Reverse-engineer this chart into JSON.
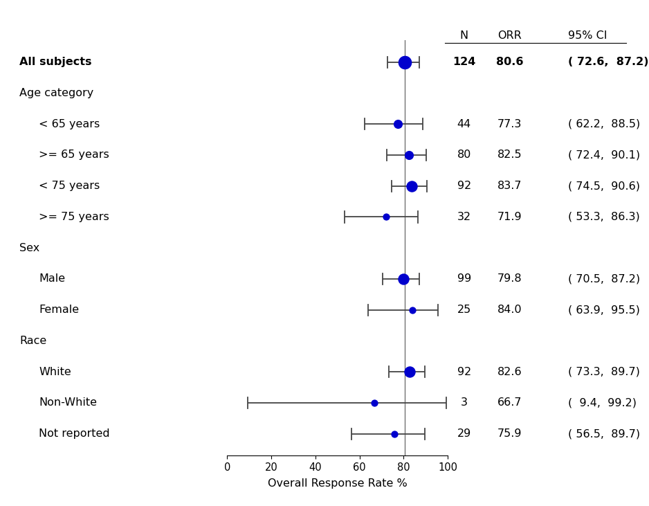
{
  "subgroups": [
    {
      "label": "All subjects",
      "orr": 80.6,
      "ci_lo": 72.6,
      "ci_hi": 87.2,
      "n": "124",
      "n_bold": true,
      "orr_str": "80.6",
      "ci_str": "( 72.6,  87.2)",
      "bold": true,
      "indent": 0,
      "is_header": false
    },
    {
      "label": "Age category",
      "orr": null,
      "ci_lo": null,
      "ci_hi": null,
      "n": null,
      "n_bold": false,
      "orr_str": null,
      "ci_str": null,
      "bold": false,
      "indent": 0,
      "is_header": true
    },
    {
      "label": "< 65 years",
      "orr": 77.3,
      "ci_lo": 62.2,
      "ci_hi": 88.5,
      "n": "44",
      "n_bold": false,
      "orr_str": "77.3",
      "ci_str": "( 62.2,  88.5)",
      "bold": false,
      "indent": 1,
      "is_header": false
    },
    {
      ">= 65 years": null,
      "label": ">= 65 years",
      "orr": 82.5,
      "ci_lo": 72.4,
      "ci_hi": 90.1,
      "n": "80",
      "n_bold": false,
      "orr_str": "82.5",
      "ci_str": "( 72.4,  90.1)",
      "bold": false,
      "indent": 1,
      "is_header": false
    },
    {
      "label": "< 75 years",
      "orr": 83.7,
      "ci_lo": 74.5,
      "ci_hi": 90.6,
      "n": "92",
      "n_bold": false,
      "orr_str": "83.7",
      "ci_str": "( 74.5,  90.6)",
      "bold": false,
      "indent": 1,
      "is_header": false
    },
    {
      "label": ">= 75 years",
      "orr": 71.9,
      "ci_lo": 53.3,
      "ci_hi": 86.3,
      "n": "32",
      "n_bold": false,
      "orr_str": "71.9",
      "ci_str": "( 53.3,  86.3)",
      "bold": false,
      "indent": 1,
      "is_header": false
    },
    {
      "label": "Sex",
      "orr": null,
      "ci_lo": null,
      "ci_hi": null,
      "n": null,
      "n_bold": false,
      "orr_str": null,
      "ci_str": null,
      "bold": false,
      "indent": 0,
      "is_header": true
    },
    {
      "label": "Male",
      "orr": 79.8,
      "ci_lo": 70.5,
      "ci_hi": 87.2,
      "n": "99",
      "n_bold": false,
      "orr_str": "79.8",
      "ci_str": "( 70.5,  87.2)",
      "bold": false,
      "indent": 1,
      "is_header": false
    },
    {
      "label": "Female",
      "orr": 84.0,
      "ci_lo": 63.9,
      "ci_hi": 95.5,
      "n": "25",
      "n_bold": false,
      "orr_str": "84.0",
      "ci_str": "( 63.9,  95.5)",
      "bold": false,
      "indent": 1,
      "is_header": false
    },
    {
      "label": "Race",
      "orr": null,
      "ci_lo": null,
      "ci_hi": null,
      "n": null,
      "n_bold": false,
      "orr_str": null,
      "ci_str": null,
      "bold": false,
      "indent": 0,
      "is_header": true
    },
    {
      "label": "White",
      "orr": 82.6,
      "ci_lo": 73.3,
      "ci_hi": 89.7,
      "n": "92",
      "n_bold": false,
      "orr_str": "82.6",
      "ci_str": "( 73.3,  89.7)",
      "bold": false,
      "indent": 1,
      "is_header": false
    },
    {
      "label": "Non-White",
      "orr": 66.7,
      "ci_lo": 9.4,
      "ci_hi": 99.2,
      "n": "3",
      "n_bold": false,
      "orr_str": "66.7",
      "ci_str": "(  9.4,  99.2)",
      "bold": false,
      "indent": 1,
      "is_header": false
    },
    {
      "label": "Not reported",
      "orr": 75.9,
      "ci_lo": 56.5,
      "ci_hi": 89.7,
      "n": "29",
      "n_bold": false,
      "orr_str": "75.9",
      "ci_str": "( 56.5,  89.7)",
      "bold": false,
      "indent": 1,
      "is_header": false
    }
  ],
  "xlim": [
    0,
    100
  ],
  "xticks": [
    0,
    20,
    40,
    60,
    80,
    100
  ],
  "xlabel": "Overall Response Rate %",
  "ref_line": 80.6,
  "dot_color": "#0000CD",
  "ci_color": "#444444",
  "bg_color": "#ffffff",
  "font_size": 11.5,
  "col_n_label": "N",
  "col_orr_label": "ORR",
  "col_ci_label": "95% CI"
}
